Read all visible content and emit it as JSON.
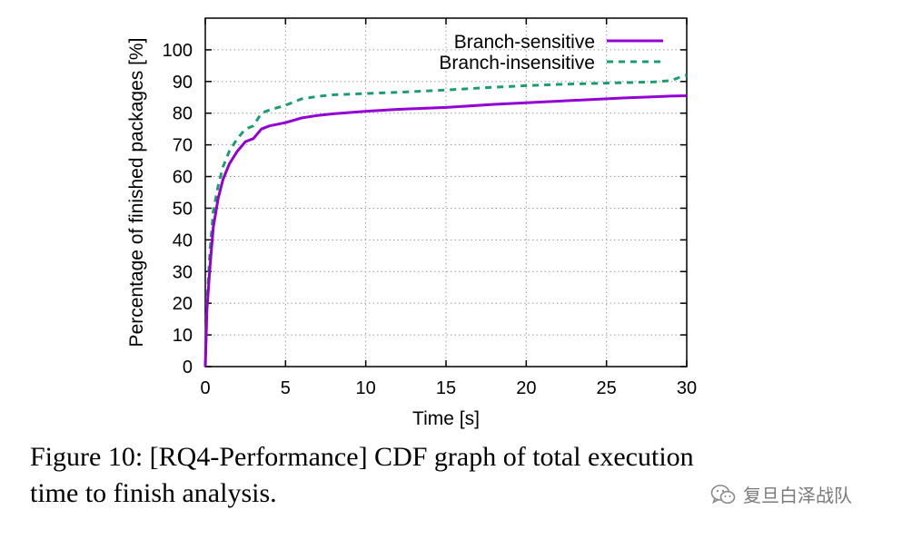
{
  "chart_data": {
    "type": "line",
    "xlabel": "Time [s]",
    "ylabel": "Percentage of finished packages [%]",
    "xlim": [
      0,
      30
    ],
    "ylim": [
      0,
      110
    ],
    "xticks": [
      0,
      5,
      10,
      15,
      20,
      25,
      30
    ],
    "yticks": [
      0,
      10,
      20,
      30,
      40,
      50,
      60,
      70,
      80,
      90,
      100
    ],
    "grid": true,
    "legend_position": "top-right",
    "series": [
      {
        "name": "Branch-sensitive",
        "color": "#9400d3",
        "style": "solid",
        "x": [
          0,
          0.1,
          0.3,
          0.5,
          0.8,
          1.1,
          1.5,
          2.0,
          2.5,
          3.0,
          3.5,
          4.0,
          5.0,
          6.0,
          7.0,
          8.0,
          9.0,
          10.0,
          12.0,
          15.0,
          18.0,
          20.0,
          22.0,
          24.0,
          26.0,
          28.0,
          29.0,
          30.0
        ],
        "y": [
          0,
          18,
          32,
          44,
          53,
          59,
          64,
          68,
          71,
          72,
          75,
          76,
          77,
          78.5,
          79.3,
          79.8,
          80.2,
          80.6,
          81.2,
          81.8,
          82.8,
          83.3,
          83.8,
          84.3,
          84.8,
          85.2,
          85.4,
          85.5
        ]
      },
      {
        "name": "Branch-insensitive",
        "color": "#1a9e6e",
        "style": "dashed",
        "x": [
          0,
          0.1,
          0.3,
          0.5,
          0.8,
          1.1,
          1.5,
          2.0,
          2.5,
          3.0,
          3.5,
          4.0,
          5.0,
          6.0,
          7.0,
          8.0,
          9.0,
          10.0,
          12.0,
          15.0,
          18.0,
          20.0,
          22.0,
          25.0,
          28.0,
          29.0,
          29.5,
          30.0
        ],
        "y": [
          0,
          20,
          37,
          49,
          57,
          63,
          68,
          72,
          75,
          76,
          80,
          81,
          82.5,
          84.5,
          85.3,
          85.8,
          86,
          86.2,
          86.6,
          87.3,
          88.2,
          88.7,
          89.1,
          89.5,
          89.9,
          90.3,
          91.2,
          92.0
        ]
      }
    ]
  },
  "caption": {
    "line1": "Figure 10: [RQ4-Performance] CDF graph of total execution",
    "line2": "time to finish analysis."
  },
  "watermark": {
    "text": "复旦白泽战队",
    "icon": "wechat-icon"
  }
}
